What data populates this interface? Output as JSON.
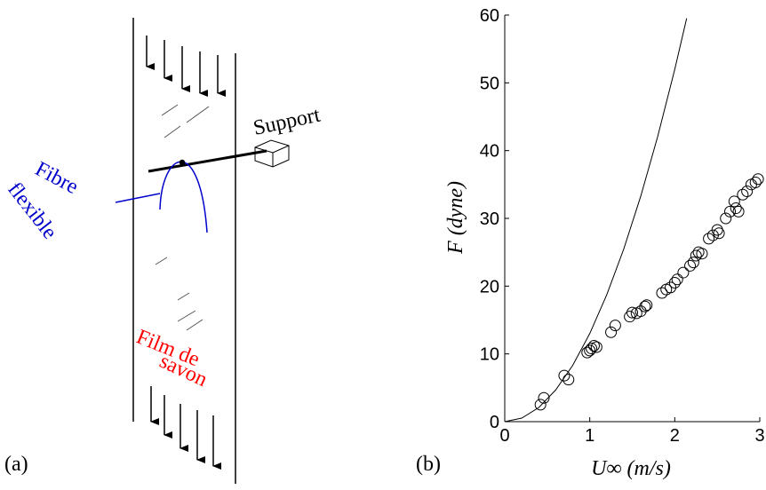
{
  "diagram": {
    "label": "(a)",
    "support": "Support",
    "fibre": [
      "Fibre",
      "flexible"
    ],
    "film": [
      "Film de",
      "savon"
    ]
  },
  "chart_data": {
    "type": "scatter",
    "panel_label": "(b)",
    "x_label": "U∞ (m/s)",
    "y_label": "F (dyne)",
    "xlim": [
      0,
      3
    ],
    "ylim": [
      0,
      60
    ],
    "xticks": [
      0,
      1,
      2,
      3
    ],
    "yticks": [
      0,
      10,
      20,
      30,
      40,
      50,
      60
    ],
    "series": [
      {
        "type": "line",
        "color": "#000000",
        "x": [
          0,
          0.2,
          0.4,
          0.6,
          0.8,
          1.0,
          1.2,
          1.4,
          1.6,
          1.8,
          2.0,
          2.14
        ],
        "values": [
          0,
          0.52,
          2.08,
          4.68,
          8.32,
          13,
          18.72,
          25.48,
          33.28,
          42.12,
          52,
          59.53
        ]
      },
      {
        "type": "scatter",
        "color": "#000000",
        "x": [
          0.42,
          0.46,
          0.7,
          0.75,
          0.97,
          1.0,
          1.02,
          1.05,
          1.08,
          1.25,
          1.3,
          1.47,
          1.5,
          1.55,
          1.6,
          1.65,
          1.67,
          1.85,
          1.9,
          1.95,
          2.0,
          2.03,
          2.1,
          2.18,
          2.22,
          2.25,
          2.28,
          2.32,
          2.4,
          2.45,
          2.5,
          2.52,
          2.6,
          2.65,
          2.7,
          2.72,
          2.75,
          2.8,
          2.85,
          2.9,
          2.95,
          2.98
        ],
        "values": [
          2.5,
          3.5,
          6.8,
          6.2,
          10.2,
          10.5,
          10.8,
          11.2,
          11.0,
          13.2,
          14.2,
          15.5,
          16.1,
          16.0,
          16.3,
          17.0,
          17.2,
          19.0,
          19.5,
          19.8,
          20.5,
          21.0,
          22.0,
          23.0,
          23.5,
          24.5,
          25.0,
          24.8,
          27.0,
          27.5,
          28.3,
          27.8,
          30.0,
          31.0,
          32.5,
          31.5,
          31.0,
          33.5,
          34.0,
          35.0,
          35.3,
          35.8
        ]
      }
    ]
  }
}
